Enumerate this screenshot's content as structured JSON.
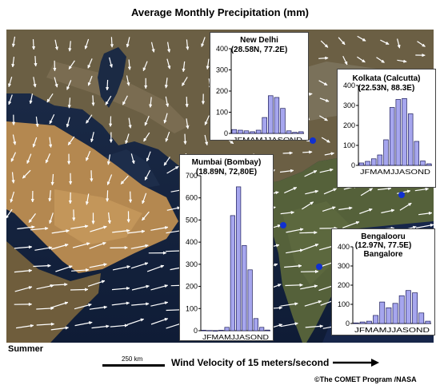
{
  "title": "Average Monthly Precipitation (mm)",
  "season": "Summer",
  "scale_bar_label": "250 km",
  "wind_label": "Wind Velocity of 15 meters/second",
  "copyright": "©The COMET Program /NASA",
  "colors": {
    "bar_fill": "#a6a6ee",
    "bar_stroke": "#1c1c5a",
    "city_dot": "#1030d0",
    "arrow": "#ffffff"
  },
  "chart_data": [
    {
      "type": "bar",
      "title": "New Delhi",
      "subtitle": "(28.58N, 77.2E)",
      "categories": [
        "J",
        "F",
        "M",
        "A",
        "M",
        "J",
        "J",
        "A",
        "S",
        "O",
        "N",
        "D"
      ],
      "x_tick_text": "JFMAMJJASOND",
      "values": [
        18,
        15,
        12,
        8,
        15,
        75,
        178,
        170,
        118,
        12,
        5,
        8
      ],
      "ylim": [
        0,
        400
      ],
      "yticks": [
        0,
        100,
        200,
        300,
        400
      ]
    },
    {
      "type": "bar",
      "title": "Kolkata (Calcutta)",
      "subtitle": "(22.53N, 88.3E)",
      "categories": [
        "J",
        "F",
        "M",
        "A",
        "M",
        "J",
        "J",
        "A",
        "S",
        "O",
        "N",
        "D"
      ],
      "x_tick_text": "JFMAMJJASOND",
      "values": [
        12,
        20,
        33,
        52,
        128,
        290,
        330,
        335,
        258,
        120,
        22,
        8
      ],
      "ylim": [
        0,
        400
      ],
      "yticks": [
        0,
        100,
        200,
        300,
        400
      ]
    },
    {
      "type": "bar",
      "title": "Mumbai (Bombay)",
      "subtitle": "(18.89N, 72,80E)",
      "categories": [
        "J",
        "F",
        "M",
        "A",
        "M",
        "J",
        "J",
        "A",
        "S",
        "O",
        "N",
        "D"
      ],
      "x_tick_text": "JFMAMJJASOND",
      "values": [
        2,
        1,
        0,
        2,
        15,
        520,
        650,
        385,
        275,
        55,
        15,
        3
      ],
      "ylim": [
        0,
        700
      ],
      "yticks": [
        0,
        100,
        200,
        300,
        400,
        500,
        600,
        700
      ]
    },
    {
      "type": "bar",
      "title": "Bengalooru",
      "subtitle": "(12.97N, 77.5E)",
      "subtitle2": "Bangalore",
      "categories": [
        "J",
        "F",
        "M",
        "A",
        "M",
        "J",
        "J",
        "A",
        "S",
        "O",
        "N",
        "D"
      ],
      "x_tick_text": "JFMAMJJASOND",
      "values": [
        3,
        8,
        12,
        42,
        112,
        82,
        105,
        145,
        172,
        160,
        55,
        12
      ],
      "ylim": [
        0,
        400
      ],
      "yticks": [
        0,
        100,
        200,
        300,
        400
      ]
    }
  ]
}
